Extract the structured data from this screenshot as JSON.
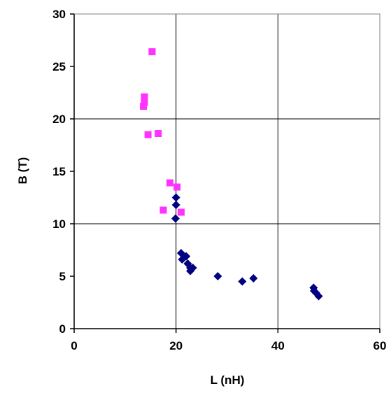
{
  "chart_data": {
    "type": "scatter",
    "title": "",
    "xlabel": "L (nH)",
    "ylabel": "B (T)",
    "xlim": [
      0,
      60
    ],
    "ylim": [
      0,
      30
    ],
    "xticks": [
      "0",
      "20",
      "40",
      "60"
    ],
    "yticks": [
      "0",
      "5",
      "10",
      "15",
      "20",
      "25",
      "30"
    ],
    "xgrid": true,
    "ygrid": "major at 10, 20",
    "legend": "none",
    "series": [
      {
        "marker": "square",
        "color": "#ff33ff",
        "points": [
          [
            15.3,
            26.4
          ],
          [
            13.8,
            22.1
          ],
          [
            13.8,
            21.6
          ],
          [
            13.6,
            21.2
          ],
          [
            14.5,
            18.5
          ],
          [
            16.5,
            18.6
          ],
          [
            18.8,
            13.9
          ],
          [
            20.2,
            13.5
          ],
          [
            17.5,
            11.3
          ],
          [
            21.0,
            11.1
          ]
        ]
      },
      {
        "marker": "diamond",
        "color": "#000080",
        "points": [
          [
            20.0,
            12.5
          ],
          [
            20.0,
            11.8
          ],
          [
            19.9,
            10.5
          ],
          [
            21.0,
            7.2
          ],
          [
            21.2,
            6.6
          ],
          [
            22.0,
            6.9
          ],
          [
            22.3,
            6.2
          ],
          [
            22.8,
            5.8
          ],
          [
            22.8,
            5.5
          ],
          [
            23.3,
            5.8
          ],
          [
            28.2,
            5.0
          ],
          [
            33.0,
            4.5
          ],
          [
            35.2,
            4.8
          ],
          [
            47.0,
            3.9
          ],
          [
            47.1,
            3.6
          ],
          [
            47.5,
            3.4
          ],
          [
            48.0,
            3.1
          ]
        ]
      }
    ]
  }
}
